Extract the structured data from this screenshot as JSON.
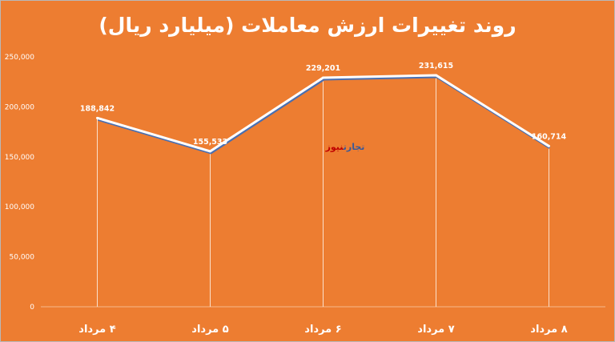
{
  "chart_data": {
    "type": "line",
    "title": "روند تغییرات ارزش معاملات (میلیارد ریال)",
    "categories": [
      "۴ مرداد",
      "۵ مرداد",
      "۶ مرداد",
      "۷ مرداد",
      "۸ مرداد"
    ],
    "series": [
      {
        "values": [
          188842,
          155533,
          229201,
          231615,
          160714
        ]
      }
    ],
    "data_labels": [
      "188,842",
      "155,533",
      "229,201",
      "231,615",
      "160,714"
    ],
    "ylim": [
      0,
      250000
    ],
    "yticks": [
      0,
      50000,
      100000,
      150000,
      200000,
      250000
    ],
    "ytick_labels": [
      "0",
      "50,000",
      "100,000",
      "150,000",
      "200,000",
      "250,000"
    ],
    "grid": false,
    "drop_lines": true,
    "colors": {
      "background": "#ed7d31",
      "line": "#ffffff",
      "line_shadow": "#4a6fb0"
    }
  },
  "watermark": {
    "part1": "تجارت",
    "part2": "نیوز",
    "color1": "#3b5998",
    "color2": "#c00000"
  }
}
